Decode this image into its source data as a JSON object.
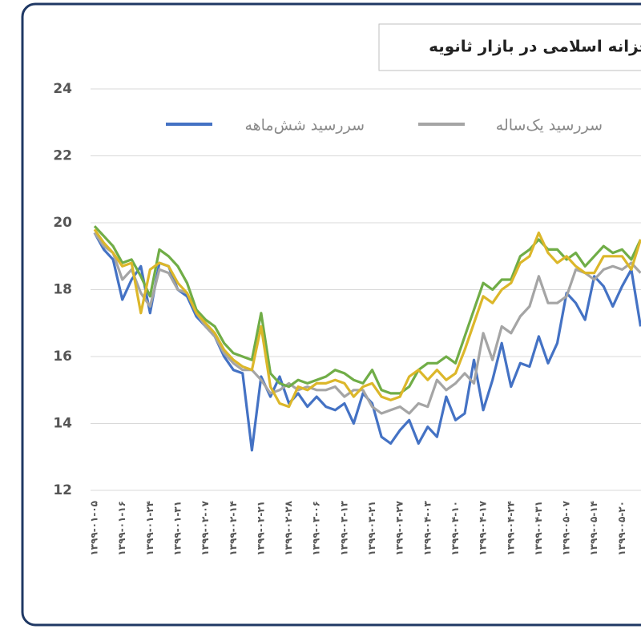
{
  "chart_data": {
    "type": "line",
    "title": "خزانه اسلامی در بازار ثانویه",
    "categories": [
      "۱۳۹۹-۰۱-۰۵",
      null,
      null,
      "۱۳۹۹-۰۱-۱۶",
      null,
      null,
      "۱۳۹۹-۰۱-۲۴",
      null,
      null,
      "۱۳۹۹-۰۱-۳۱",
      null,
      null,
      "۱۳۹۹-۰۲-۰۷",
      null,
      null,
      "۱۳۹۹-۰۲-۱۴",
      null,
      null,
      "۱۳۹۹-۰۲-۲۱",
      null,
      null,
      "۱۳۹۹-۰۲-۲۸",
      null,
      null,
      "۱۳۹۹-۰۳-۰۶",
      null,
      null,
      "۱۳۹۹-۰۳-۱۳",
      null,
      null,
      "۱۳۹۹-۰۳-۲۱",
      null,
      null,
      "۱۳۹۹-۰۳-۲۷",
      null,
      null,
      "۱۳۹۹-۰۴-۰۳",
      null,
      null,
      "۱۳۹۹-۰۴-۱۰",
      null,
      null,
      "۱۳۹۹-۰۴-۱۷",
      null,
      null,
      "۱۳۹۹-۰۴-۲۴",
      null,
      null,
      "۱۳۹۹-۰۴-۳۱",
      null,
      null,
      "۱۳۹۹-۰۵-۰۷",
      null,
      null,
      "۱۳۹۹-۰۵-۱۴",
      null,
      null,
      "۱۳۹۹-۰۵-۲۰",
      null,
      null
    ],
    "series": [
      {
        "name": "سررسید شش‌ماهه",
        "color": "#4472c4",
        "values": [
          19.7,
          19.2,
          18.9,
          17.7,
          18.3,
          18.7,
          17.3,
          18.8,
          18.7,
          18.0,
          17.8,
          17.2,
          16.9,
          16.6,
          16.0,
          15.6,
          15.5,
          13.2,
          15.4,
          14.8,
          15.4,
          14.6,
          14.9,
          14.5,
          14.8,
          14.5,
          14.4,
          14.6,
          14.0,
          14.9,
          14.6,
          13.6,
          13.4,
          13.8,
          14.1,
          13.4,
          13.9,
          13.6,
          14.8,
          14.1,
          14.3,
          15.9,
          14.4,
          15.3,
          16.4,
          15.1,
          15.8,
          15.7,
          16.6,
          15.8,
          16.4,
          17.9,
          17.6,
          17.1,
          18.4,
          18.1,
          17.5,
          18.1,
          18.6,
          16.9
        ]
      },
      {
        "name": "سررسید یک‌ساله",
        "color": "#a5a5a5",
        "values": [
          19.7,
          19.3,
          19.1,
          18.3,
          18.6,
          17.9,
          17.5,
          18.6,
          18.5,
          18.0,
          17.9,
          17.3,
          16.9,
          16.6,
          16.1,
          15.8,
          15.6,
          15.6,
          15.3,
          14.9,
          15.0,
          15.2,
          15.0,
          15.1,
          15.0,
          15.0,
          15.1,
          14.8,
          15.0,
          15.0,
          14.5,
          14.3,
          14.4,
          14.5,
          14.3,
          14.6,
          14.5,
          15.3,
          15.0,
          15.2,
          15.5,
          15.2,
          16.7,
          15.9,
          16.9,
          16.7,
          17.2,
          17.5,
          18.4,
          17.6,
          17.6,
          17.8,
          18.6,
          18.5,
          18.3,
          18.6,
          18.7,
          18.6,
          18.8,
          18.5
        ]
      },
      {
        "color": "#70ad47",
        "values": [
          19.9,
          19.6,
          19.3,
          18.8,
          18.9,
          18.4,
          17.8,
          19.2,
          19.0,
          18.7,
          18.2,
          17.4,
          17.1,
          16.9,
          16.4,
          16.1,
          16.0,
          15.9,
          17.3,
          15.5,
          15.2,
          15.1,
          15.3,
          15.2,
          15.3,
          15.4,
          15.6,
          15.5,
          15.3,
          15.2,
          15.6,
          15.0,
          14.9,
          14.9,
          15.1,
          15.6,
          15.8,
          15.8,
          16.0,
          15.8,
          16.6,
          17.4,
          18.2,
          18.0,
          18.3,
          18.3,
          19.0,
          19.2,
          19.5,
          19.2,
          19.2,
          18.9,
          19.1,
          18.7,
          19.0,
          19.3,
          19.1,
          19.2,
          18.9,
          19.5
        ]
      },
      {
        "color": "#dcb72a",
        "values": [
          19.8,
          19.4,
          19.1,
          18.7,
          18.8,
          17.3,
          18.6,
          18.8,
          18.7,
          18.2,
          17.9,
          17.3,
          17.0,
          16.7,
          16.2,
          15.9,
          15.7,
          15.6,
          16.9,
          15.1,
          14.6,
          14.5,
          15.1,
          15.0,
          15.2,
          15.2,
          15.3,
          15.2,
          14.8,
          15.1,
          15.2,
          14.8,
          14.7,
          14.8,
          15.4,
          15.6,
          15.3,
          15.6,
          15.3,
          15.5,
          16.2,
          17.0,
          17.8,
          17.6,
          18.0,
          18.2,
          18.8,
          19.0,
          19.7,
          19.1,
          18.8,
          19.0,
          18.7,
          18.5,
          18.5,
          19.0,
          19.0,
          19.0,
          18.6,
          19.5
        ]
      }
    ],
    "ylim": [
      12,
      24
    ],
    "yticks": [
      12,
      14,
      16,
      18,
      20,
      22,
      24
    ],
    "grid": true
  }
}
